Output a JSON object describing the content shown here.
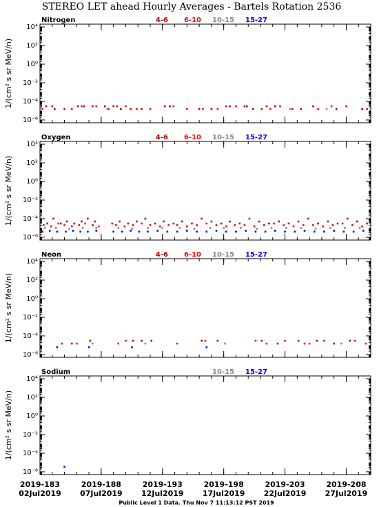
{
  "title": "STEREO LET ahead Hourly Averages - Bartels Rotation 2536",
  "footer": "Public Level 1 Data. Thu Nov  7 11:13:12 PST 2019",
  "chart_data": [
    {
      "type": "scatter",
      "title": "Nitrogen",
      "ylabel": "1/(cm² s sr MeV/n)",
      "log_y": true,
      "xlim": [
        183,
        210
      ],
      "xticks": [
        183,
        188,
        193,
        198,
        203,
        208
      ],
      "ylim": [
        5e-07,
        20000
      ],
      "yticks": [
        {
          "value": 10000,
          "label": "10⁴"
        },
        {
          "value": 100,
          "label": "10²"
        },
        {
          "value": 1,
          "label": "10⁰"
        },
        {
          "value": 0.01,
          "label": "10⁻²"
        },
        {
          "value": 0.0001,
          "label": "10⁻⁴"
        },
        {
          "value": 1e-06,
          "label": "10⁻⁶"
        }
      ],
      "series": [
        {
          "name": "4-6",
          "color": "#b00000",
          "x": [
            183.5,
            184.2,
            185.0,
            186.1,
            186.6,
            187.3,
            188.3,
            189.0,
            189.6,
            190.4,
            191.3,
            193.2,
            193.6,
            196.0,
            197.0,
            198.5,
            199.7,
            200.4,
            201.5,
            202.2,
            203.6,
            204.3,
            205.3,
            207.2,
            209.3
          ],
          "values": [
            3e-05,
            1.5e-05,
            1.5e-05,
            3e-05,
            3e-05,
            3e-05,
            3e-05,
            3e-05,
            1.5e-05,
            1.5e-05,
            1.5e-05,
            3e-05,
            3e-05,
            1.5e-05,
            1.5e-05,
            3e-05,
            3e-05,
            1.5e-05,
            3e-05,
            3e-05,
            1.5e-05,
            1.5e-05,
            3e-05,
            1.5e-05,
            1.5e-05
          ]
        },
        {
          "name": "6-10",
          "color": "#ff0000",
          "x": [
            183.2,
            184.0,
            185.6,
            186.4,
            187.6,
            188.6,
            189.3,
            190.0,
            190.9,
            192.0,
            193.9,
            195.0,
            196.3,
            197.5,
            198.2,
            199.0,
            199.9,
            201.1,
            201.8,
            202.6,
            205.7,
            206.8,
            208.0,
            209.7
          ],
          "values": [
            1.5e-05,
            3e-05,
            1.5e-05,
            3e-05,
            3e-05,
            1.5e-05,
            3e-05,
            3e-05,
            1.5e-05,
            1.5e-05,
            3e-05,
            1.5e-05,
            1.5e-05,
            1.5e-05,
            3e-05,
            3e-05,
            3e-05,
            1.5e-05,
            1.5e-05,
            3e-05,
            1.5e-05,
            3e-05,
            3e-05,
            1.5e-05
          ]
        },
        {
          "name": "10-15",
          "color": "#888888",
          "x": [
            188.5,
            203.4,
            206.4
          ],
          "values": [
            1.5e-05,
            1.5e-05,
            1.5e-05
          ]
        },
        {
          "name": "15-27",
          "color": "#0000ff",
          "x": [],
          "values": []
        }
      ]
    },
    {
      "type": "scatter",
      "title": "Oxygen",
      "ylabel": "1/(cm² s sr MeV/n)",
      "log_y": true,
      "xlim": [
        183,
        210
      ],
      "xticks": [
        183,
        188,
        193,
        198,
        203,
        208
      ],
      "ylim": [
        5e-07,
        20000
      ],
      "yticks": [
        {
          "value": 10000,
          "label": "10⁴"
        },
        {
          "value": 100,
          "label": "10²"
        },
        {
          "value": 1,
          "label": "10⁰"
        },
        {
          "value": 0.01,
          "label": "10⁻²"
        },
        {
          "value": 0.0001,
          "label": "10⁻⁴"
        },
        {
          "value": 1e-06,
          "label": "10⁻⁶"
        }
      ],
      "series": [
        {
          "name": "4-6",
          "color": "#b00000",
          "x": [
            183.1,
            183.6,
            184.1,
            184.7,
            185.2,
            185.8,
            186.4,
            186.9,
            187.5,
            188.9,
            189.5,
            190.2,
            190.9,
            191.6,
            192.4,
            193.1,
            193.9,
            194.6,
            195.4,
            196.2,
            197.0,
            197.8,
            198.5,
            199.3,
            200.1,
            200.9,
            201.7,
            202.5,
            203.3,
            204.1,
            204.9,
            205.7,
            206.5,
            207.3,
            208.1,
            208.9,
            209.7
          ],
          "values": [
            5e-05,
            3e-05,
            0.0001,
            3e-05,
            5e-05,
            3e-05,
            5e-05,
            0.0001,
            5e-05,
            3e-05,
            5e-05,
            3e-05,
            5e-05,
            0.0001,
            3e-05,
            5e-05,
            3e-05,
            5e-05,
            3e-05,
            0.0001,
            5e-05,
            3e-05,
            5e-05,
            3e-05,
            0.0001,
            5e-05,
            3e-05,
            5e-05,
            3e-05,
            5e-05,
            0.0001,
            3e-05,
            5e-05,
            3e-05,
            0.0001,
            5e-05,
            3e-05
          ]
        },
        {
          "name": "6-10",
          "color": "#ff0000",
          "x": [
            183.3,
            183.9,
            184.5,
            185.0,
            185.6,
            186.2,
            186.7,
            187.3,
            187.8,
            189.2,
            189.9,
            190.6,
            191.3,
            192.0,
            192.8,
            193.5,
            194.2,
            195.0,
            195.8,
            196.6,
            197.4,
            198.2,
            198.9,
            199.7,
            200.5,
            201.3,
            202.1,
            202.9,
            203.7,
            204.5,
            205.3,
            206.1,
            206.9,
            207.7,
            208.5,
            209.3
          ],
          "values": [
            2e-05,
            1.5e-05,
            3e-05,
            2e-05,
            1.5e-05,
            2e-05,
            3e-05,
            2e-05,
            1.5e-05,
            2e-05,
            1.5e-05,
            2e-05,
            3e-05,
            2e-05,
            1.5e-05,
            2e-05,
            2e-05,
            1.5e-05,
            2e-05,
            3e-05,
            2e-05,
            1.5e-05,
            2e-05,
            2e-05,
            1.5e-05,
            2e-05,
            3e-05,
            2e-05,
            1.5e-05,
            2e-05,
            2e-05,
            1.5e-05,
            2e-05,
            3e-05,
            2e-05,
            1.5e-05
          ]
        },
        {
          "name": "10-15",
          "color": "#888888",
          "x": [
            183.4,
            184.3,
            185.4,
            186.5,
            187.6,
            189.4,
            190.5,
            191.8,
            193.0,
            194.4,
            195.6,
            196.9,
            198.0,
            199.4,
            200.7,
            201.9,
            203.1,
            204.3,
            205.5,
            206.7,
            207.9,
            209.1
          ],
          "values": [
            1e-05,
            1e-05,
            8e-06,
            1e-05,
            1e-05,
            1e-05,
            8e-06,
            1e-05,
            1e-05,
            1e-05,
            8e-06,
            1e-05,
            1e-05,
            1e-05,
            8e-06,
            1e-05,
            1e-05,
            1e-05,
            8e-06,
            1e-05,
            1e-05,
            1e-05
          ]
        },
        {
          "name": "15-27",
          "color": "#0000ff",
          "x": [
            183.2,
            183.8,
            184.4,
            185.1,
            185.7,
            186.3,
            186.9,
            187.6,
            189.0,
            189.7,
            190.4,
            191.1,
            191.8,
            192.6,
            193.4,
            194.2,
            195.0,
            195.8,
            196.6,
            197.4,
            198.2,
            199.0,
            199.8,
            200.6,
            201.4,
            202.2,
            203.0,
            203.8,
            204.6,
            205.4,
            206.2,
            207.0,
            207.8,
            208.6,
            209.4
          ],
          "values": [
            4e-06,
            5e-06,
            4e-06,
            4e-06,
            5e-06,
            4e-06,
            4e-06,
            5e-06,
            4e-06,
            4e-06,
            5e-06,
            4e-06,
            4e-06,
            5e-06,
            4e-06,
            4e-06,
            5e-06,
            4e-06,
            4e-06,
            5e-06,
            4e-06,
            4e-06,
            5e-06,
            4e-06,
            4e-06,
            5e-06,
            4e-06,
            4e-06,
            5e-06,
            4e-06,
            4e-06,
            5e-06,
            4e-06,
            4e-06,
            5e-06
          ]
        }
      ]
    },
    {
      "type": "scatter",
      "title": "Neon",
      "ylabel": "1/(cm² s sr MeV/n)",
      "log_y": true,
      "xlim": [
        183,
        210
      ],
      "xticks": [
        183,
        188,
        193,
        198,
        203,
        208
      ],
      "ylim": [
        5e-07,
        20000
      ],
      "yticks": [
        {
          "value": 10000,
          "label": "10⁴"
        },
        {
          "value": 100,
          "label": "10²"
        },
        {
          "value": 1,
          "label": "10⁰"
        },
        {
          "value": 0.01,
          "label": "10⁻²"
        },
        {
          "value": 0.0001,
          "label": "10⁻⁴"
        },
        {
          "value": 1e-06,
          "label": "10⁻⁶"
        }
      ],
      "series": [
        {
          "name": "4-6",
          "color": "#b00000",
          "x": [
            185.6,
            187.1,
            190.6,
            191.3,
            192.1,
            196.2,
            197.5,
            201.1,
            202.4,
            204.1,
            205.6,
            207.0,
            208.3
          ],
          "values": [
            1.5e-05,
            3e-05,
            3e-05,
            3e-05,
            3e-05,
            3e-05,
            3e-05,
            3e-05,
            1.5e-05,
            3e-05,
            3e-05,
            1.5e-05,
            3e-05
          ]
        },
        {
          "name": "6-10",
          "color": "#ff0000",
          "x": [
            184.8,
            186.0,
            189.4,
            190.0,
            194.2,
            196.5,
            200.6,
            201.5,
            203.0,
            204.6,
            205.0,
            206.2,
            208.7,
            209.6
          ],
          "values": [
            1.5e-05,
            1.5e-05,
            1.5e-05,
            3e-05,
            1.5e-05,
            3e-05,
            3e-05,
            1.5e-05,
            3e-05,
            1.5e-05,
            1.5e-05,
            3e-05,
            3e-05,
            1.5e-05
          ]
        },
        {
          "name": "10-15",
          "color": "#888888",
          "x": [
            187.3,
            191.6,
            198.1,
            207.6
          ],
          "values": [
            1.5e-05,
            1.5e-05,
            1.5e-05,
            1.5e-05
          ]
        },
        {
          "name": "15-27",
          "color": "#0000ff",
          "x": [
            184.4,
            187.0,
            190.5,
            196.6
          ],
          "values": [
            6e-06,
            6e-06,
            6e-06,
            6e-06
          ]
        }
      ]
    },
    {
      "type": "scatter",
      "title": "Sodium",
      "ylabel": "1/(cm² s sr MeV/n)",
      "log_y": true,
      "xlim": [
        183,
        210
      ],
      "xticks": [
        {
          "value": 183,
          "label": "2019-183"
        },
        {
          "value": 188,
          "label": "2019-188"
        },
        {
          "value": 193,
          "label": "2019-193"
        },
        {
          "value": 198,
          "label": "2019-198"
        },
        {
          "value": 203,
          "label": "2019-203"
        },
        {
          "value": 208,
          "label": "2019-208"
        }
      ],
      "xtick_dates": [
        "02Jul2019",
        "07Jul2019",
        "12Jul2019",
        "17Jul2019",
        "22Jul2019",
        "27Jul2019"
      ],
      "ylim": [
        5e-07,
        20000
      ],
      "yticks": [
        {
          "value": 10000,
          "label": "10⁴"
        },
        {
          "value": 100,
          "label": "10²"
        },
        {
          "value": 1,
          "label": "10⁰"
        },
        {
          "value": 0.01,
          "label": "10⁻²"
        },
        {
          "value": 0.0001,
          "label": "10⁻⁴"
        },
        {
          "value": 1e-06,
          "label": "10⁻⁶"
        }
      ],
      "series": [
        {
          "name": "10-15",
          "color": "#888888",
          "x": [],
          "values": []
        },
        {
          "name": "15-27",
          "color": "#0000ff",
          "x": [
            185.0
          ],
          "values": [
            3.5e-06
          ]
        }
      ]
    }
  ]
}
